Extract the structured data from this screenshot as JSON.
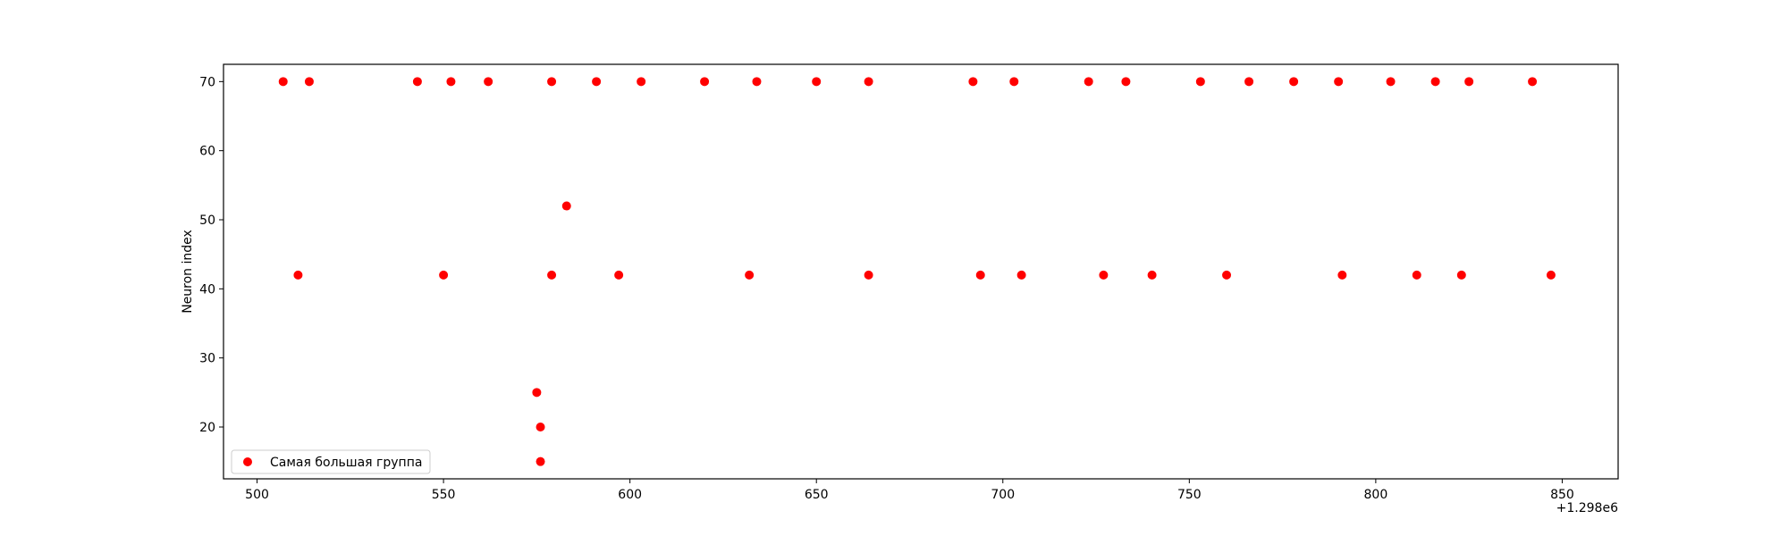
{
  "chart_data": {
    "type": "scatter",
    "title": "",
    "xlabel": "",
    "ylabel": "Neuron index",
    "x_offset_label": "+1.298e6",
    "xlim": [
      491,
      865
    ],
    "ylim": [
      12.5,
      72.5
    ],
    "xticks": [
      {
        "value": 500,
        "label": "500"
      },
      {
        "value": 550,
        "label": "550"
      },
      {
        "value": 600,
        "label": "600"
      },
      {
        "value": 650,
        "label": "650"
      },
      {
        "value": 700,
        "label": "700"
      },
      {
        "value": 750,
        "label": "750"
      },
      {
        "value": 800,
        "label": "800"
      },
      {
        "value": 850,
        "label": "850"
      }
    ],
    "yticks": [
      {
        "value": 20,
        "label": "20"
      },
      {
        "value": 30,
        "label": "30"
      },
      {
        "value": 40,
        "label": "40"
      },
      {
        "value": 50,
        "label": "50"
      },
      {
        "value": 60,
        "label": "60"
      },
      {
        "value": 70,
        "label": "70"
      }
    ],
    "grid": false,
    "legend_position": "lower-left",
    "series": [
      {
        "name": "Самая большая группа",
        "color": "#ff0000",
        "points": [
          {
            "x": 507,
            "y": 70
          },
          {
            "x": 514,
            "y": 70
          },
          {
            "x": 543,
            "y": 70
          },
          {
            "x": 552,
            "y": 70
          },
          {
            "x": 562,
            "y": 70
          },
          {
            "x": 579,
            "y": 70
          },
          {
            "x": 591,
            "y": 70
          },
          {
            "x": 603,
            "y": 70
          },
          {
            "x": 620,
            "y": 70
          },
          {
            "x": 634,
            "y": 70
          },
          {
            "x": 650,
            "y": 70
          },
          {
            "x": 664,
            "y": 70
          },
          {
            "x": 692,
            "y": 70
          },
          {
            "x": 703,
            "y": 70
          },
          {
            "x": 723,
            "y": 70
          },
          {
            "x": 733,
            "y": 70
          },
          {
            "x": 753,
            "y": 70
          },
          {
            "x": 766,
            "y": 70
          },
          {
            "x": 778,
            "y": 70
          },
          {
            "x": 790,
            "y": 70
          },
          {
            "x": 804,
            "y": 70
          },
          {
            "x": 816,
            "y": 70
          },
          {
            "x": 825,
            "y": 70
          },
          {
            "x": 842,
            "y": 70
          },
          {
            "x": 583,
            "y": 52
          },
          {
            "x": 511,
            "y": 42
          },
          {
            "x": 550,
            "y": 42
          },
          {
            "x": 579,
            "y": 42
          },
          {
            "x": 597,
            "y": 42
          },
          {
            "x": 632,
            "y": 42
          },
          {
            "x": 664,
            "y": 42
          },
          {
            "x": 694,
            "y": 42
          },
          {
            "x": 705,
            "y": 42
          },
          {
            "x": 727,
            "y": 42
          },
          {
            "x": 740,
            "y": 42
          },
          {
            "x": 760,
            "y": 42
          },
          {
            "x": 791,
            "y": 42
          },
          {
            "x": 811,
            "y": 42
          },
          {
            "x": 823,
            "y": 42
          },
          {
            "x": 847,
            "y": 42
          },
          {
            "x": 575,
            "y": 25
          },
          {
            "x": 576,
            "y": 20
          },
          {
            "x": 576,
            "y": 15
          }
        ]
      }
    ]
  }
}
